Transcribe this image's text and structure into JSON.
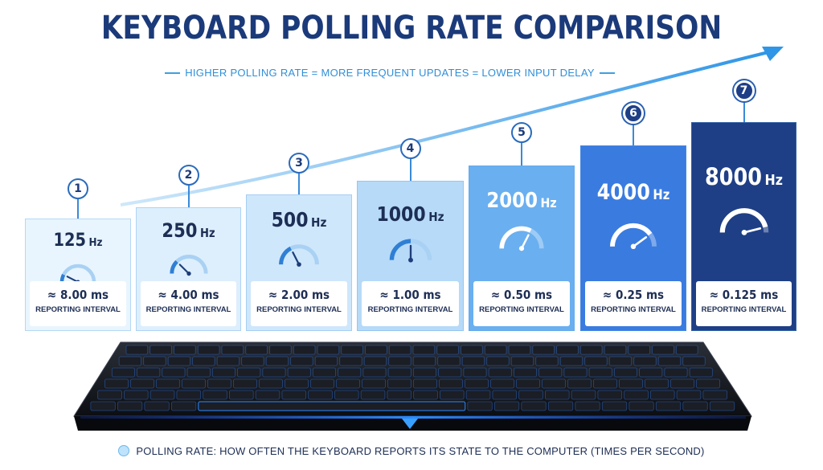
{
  "title": "KEYBOARD POLLING RATE COMPARISON",
  "subtitle": "HIGHER POLLING RATE = MORE FREQUENT UPDATES = LOWER INPUT DELAY",
  "unit": "Hz",
  "interval_label": "REPORTING INTERVAL",
  "cards": [
    {
      "num": "1",
      "hz": "125",
      "ms": "≈ 8.00 ms",
      "level": 0.15
    },
    {
      "num": "2",
      "hz": "250",
      "ms": "≈ 4.00 ms",
      "level": 0.25
    },
    {
      "num": "3",
      "hz": "500",
      "ms": "≈ 2.00 ms",
      "level": 0.35
    },
    {
      "num": "4",
      "hz": "1000",
      "ms": "≈ 1.00 ms",
      "level": 0.5
    },
    {
      "num": "5",
      "hz": "2000",
      "ms": "≈ 0.50 ms",
      "level": 0.65
    },
    {
      "num": "6",
      "hz": "4000",
      "ms": "≈ 0.25 ms",
      "level": 0.8
    },
    {
      "num": "7",
      "hz": "8000",
      "ms": "≈ 0.125 ms",
      "level": 0.92
    }
  ],
  "footer": "POLLING RATE: HOW OFTEN THE KEYBOARD REPORTS ITS STATE TO THE COMPUTER (TIMES PER SECOND)",
  "colors": {
    "title": "#1b3a7a",
    "accent": "#3f9fe0",
    "card_fills": [
      "#e8f5fe",
      "#ddeffd",
      "#cfe7fb",
      "#b6daf8",
      "#6aaff0",
      "#3a7be0",
      "#1e3f86"
    ],
    "text_dark": "#1d2e55"
  }
}
